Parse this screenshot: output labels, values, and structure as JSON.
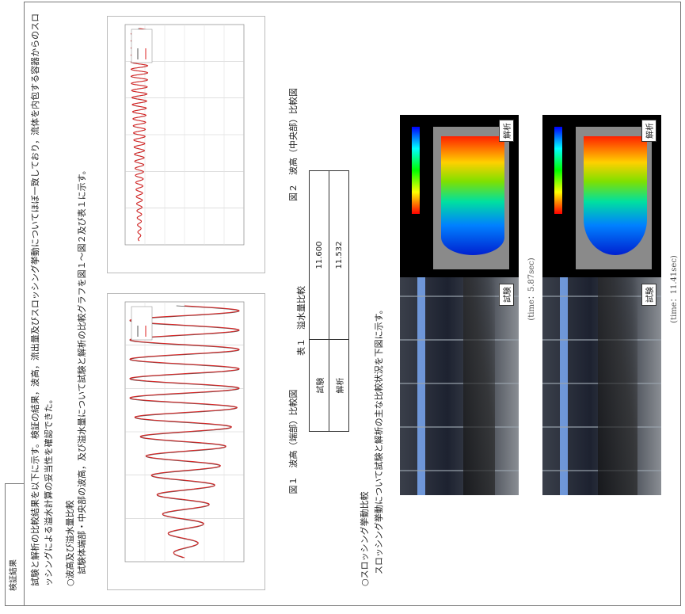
{
  "tab": "検証結果",
  "intro": "試験と解析の比較結果を以下に示す。検証の結果，波高，流出量及びスロッシング挙動についてほぼ一致しており，流体を内包する容器からのスロッシングによる溢水計算の妥当性を確認できた。",
  "section1": {
    "heading": "○波高及び溢水量比較",
    "text": "試験体端部・中央部の波高，及び溢水量について試験と解析の比較グラフを図１～図２及び表１に示す。"
  },
  "figures": [
    {
      "caption": "図１　波高（端部）比較図"
    },
    {
      "caption": "図２　波高（中央部）比較図"
    }
  ],
  "table": {
    "caption": "表１　溢水量比較",
    "rows": [
      [
        "試験",
        "11.600"
      ],
      [
        "解析",
        "11.532"
      ]
    ]
  },
  "section2": {
    "heading": "○スロッシング挙動比較",
    "text": "スロッシング挙動について試験と解析の主な比較状況を下図に示す。"
  },
  "snapshots": [
    {
      "test_label": "試験",
      "analysis_label": "解析",
      "time": "(time：5.87sec)"
    },
    {
      "test_label": "試験",
      "analysis_label": "解析",
      "time": "(time：11.41sec)"
    }
  ]
}
